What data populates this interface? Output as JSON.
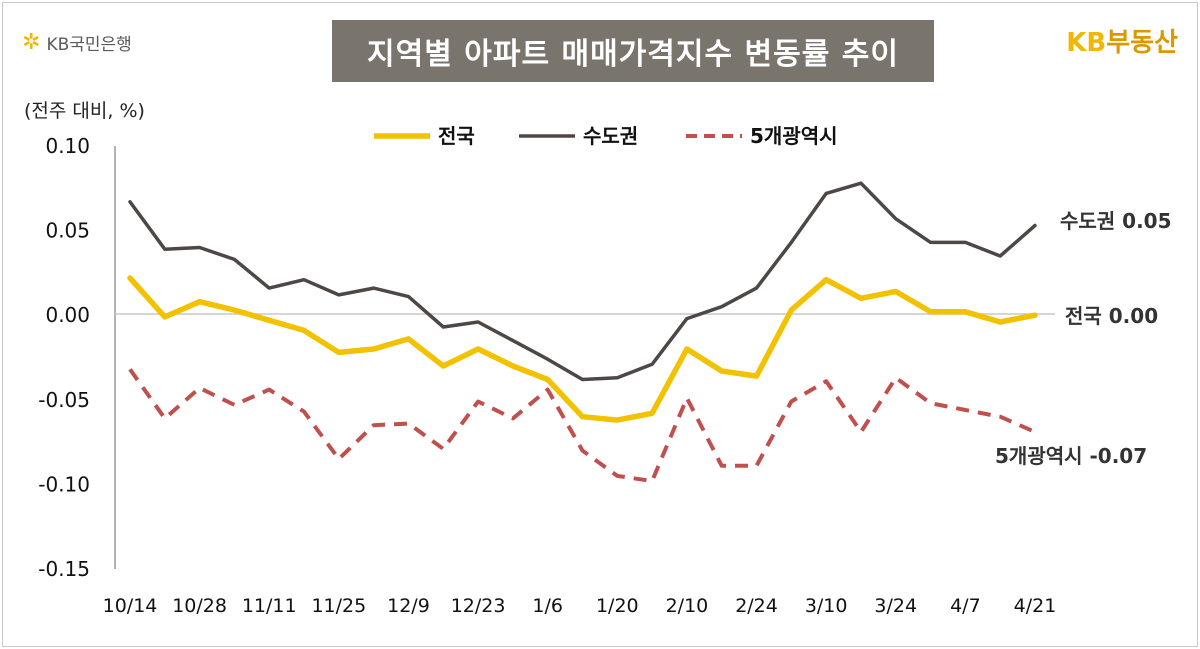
{
  "header": {
    "bank_logo_text": "KB국민은행",
    "title": "지역별 아파트 매매가격지수 변동률 추이",
    "brand": {
      "kb": "KB",
      "name": "부동산"
    }
  },
  "colors": {
    "national": "#f2c200",
    "capital": "#4d4845",
    "metro5": "#c0504d",
    "title_bg": "#7a756c",
    "brand_gold": "#d99a00"
  },
  "chart_data": {
    "type": "line",
    "unit_label": "(전주 대비, %)",
    "ylim": [
      -0.15,
      0.1
    ],
    "y_ticks": [
      0.1,
      0.05,
      0.0,
      -0.05,
      -0.1,
      -0.15
    ],
    "y_tick_labels": [
      "0.10",
      "0.05",
      "0.00",
      "-0.05",
      "-0.10",
      "-0.15"
    ],
    "x_tick_labels": [
      "10/14",
      "10/28",
      "11/11",
      "11/25",
      "12/9",
      "12/23",
      "1/6",
      "1/20",
      "2/10",
      "2/24",
      "3/10",
      "3/24",
      "4/7",
      "4/21"
    ],
    "legend": [
      "전국",
      "수도권",
      "5개광역시"
    ],
    "series": [
      {
        "name": "전국",
        "values": [
          0.022,
          -0.001,
          0.008,
          0.003,
          -0.003,
          -0.009,
          -0.022,
          -0.02,
          -0.014,
          -0.03,
          -0.02,
          -0.03,
          -0.038,
          -0.06,
          -0.062,
          -0.058,
          -0.02,
          -0.033,
          -0.036,
          0.003,
          0.021,
          0.01,
          0.014,
          0.002,
          0.002,
          -0.004,
          0.0
        ],
        "end_label": "전국 0.00"
      },
      {
        "name": "수도권",
        "values": [
          0.067,
          0.039,
          0.04,
          0.033,
          0.016,
          0.021,
          0.012,
          0.016,
          0.011,
          -0.007,
          -0.004,
          -0.015,
          -0.026,
          -0.038,
          -0.037,
          -0.029,
          -0.002,
          0.005,
          0.016,
          0.043,
          0.072,
          0.078,
          0.057,
          0.043,
          0.043,
          0.035,
          0.053
        ],
        "end_label": "수도권 0.05"
      },
      {
        "name": "5개광역시",
        "values": [
          -0.032,
          -0.061,
          -0.043,
          -0.053,
          -0.044,
          -0.057,
          -0.085,
          -0.065,
          -0.064,
          -0.079,
          -0.051,
          -0.061,
          -0.044,
          -0.08,
          -0.095,
          -0.098,
          -0.049,
          -0.089,
          -0.089,
          -0.051,
          -0.039,
          -0.069,
          -0.037,
          -0.052,
          -0.056,
          -0.06,
          -0.069
        ],
        "end_label": "5개광역시 -0.07"
      }
    ]
  }
}
